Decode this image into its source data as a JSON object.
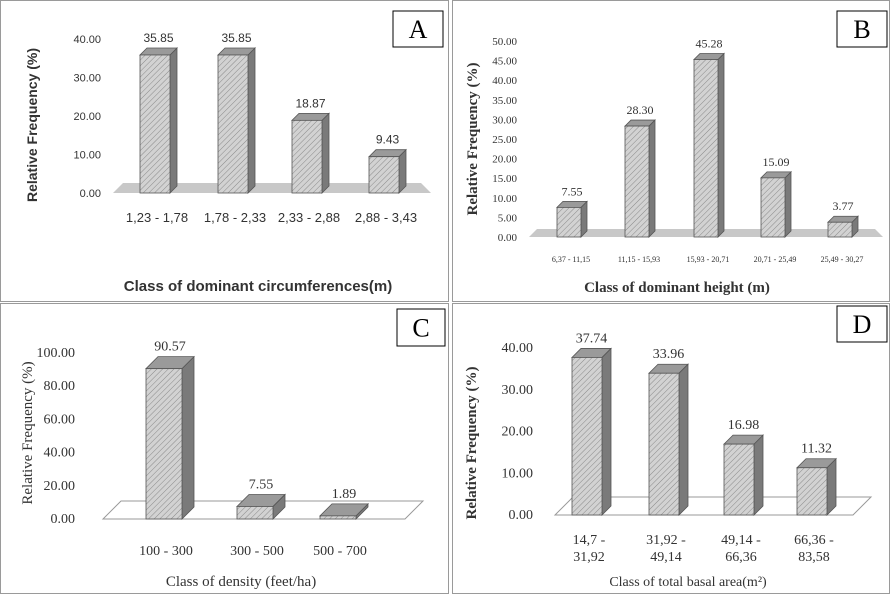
{
  "colors": {
    "bar_front": "#d2d2d2",
    "bar_side": "#7a7a7a",
    "bar_top": "#9a9a9a",
    "floor": "#c8c8c8",
    "text": "#333333"
  },
  "chart_data": [
    {
      "panel": "A",
      "type": "bar",
      "categories": [
        "1,23 - 1,78",
        "1,78 - 2,33",
        "2,33 - 2,88",
        "2,88 - 3,43"
      ],
      "values": [
        35.85,
        35.85,
        18.87,
        9.43
      ],
      "value_labels": [
        "35.85",
        "35.85",
        "18.87",
        "9.43"
      ],
      "yticks": [
        "0.00",
        "10.00",
        "20.00",
        "30.00",
        "40.00"
      ],
      "ylim": [
        0,
        40
      ],
      "xlabel": "Class of dominant circumferences(m)",
      "ylabel": "Relative Frequency (%)",
      "legend": "none",
      "grid": false
    },
    {
      "panel": "B",
      "type": "bar",
      "categories": [
        "6,37 - 11,15",
        "11,15 - 15,93",
        "15,93 - 20,71",
        "20,71 - 25,49",
        "25,49 - 30,27"
      ],
      "values": [
        7.55,
        28.3,
        45.28,
        15.09,
        3.77
      ],
      "value_labels": [
        "7.55",
        "28.30",
        "45.28",
        "15.09",
        "3.77"
      ],
      "yticks": [
        "0.00",
        "5.00",
        "10.00",
        "15.00",
        "20.00",
        "25.00",
        "30.00",
        "35.00",
        "40.00",
        "45.00",
        "50.00"
      ],
      "ylim": [
        0,
        50
      ],
      "xlabel": "Class of dominant height (m)",
      "ylabel": "Relative Frequency (%)",
      "legend": "none",
      "grid": false
    },
    {
      "panel": "C",
      "type": "bar",
      "categories": [
        "100 - 300",
        "300 - 500",
        "500 - 700"
      ],
      "values": [
        90.57,
        7.55,
        1.89
      ],
      "value_labels": [
        "90.57",
        "7.55",
        "1.89"
      ],
      "yticks": [
        "0.00",
        "20.00",
        "40.00",
        "60.00",
        "80.00",
        "100.00"
      ],
      "ylim": [
        0,
        100
      ],
      "xlabel": "Class of density (feet/ha)",
      "ylabel": "Relative Frequency (%)",
      "legend": "none",
      "grid": false
    },
    {
      "panel": "D",
      "type": "bar",
      "categories": [
        "14,7 - 31,92",
        "31,92 - 49,14",
        "49,14 - 66,36",
        "66,36 - 83,58"
      ],
      "values": [
        37.74,
        33.96,
        16.98,
        11.32
      ],
      "value_labels": [
        "37.74",
        "33.96",
        "16.98",
        "11.32"
      ],
      "yticks": [
        "0.00",
        "10.00",
        "20.00",
        "30.00",
        "40.00"
      ],
      "ylim": [
        0,
        40
      ],
      "xlabel": "Class of total basal area(m²)",
      "ylabel": "Relative Frequency (%)",
      "legend": "none",
      "grid": false
    }
  ]
}
